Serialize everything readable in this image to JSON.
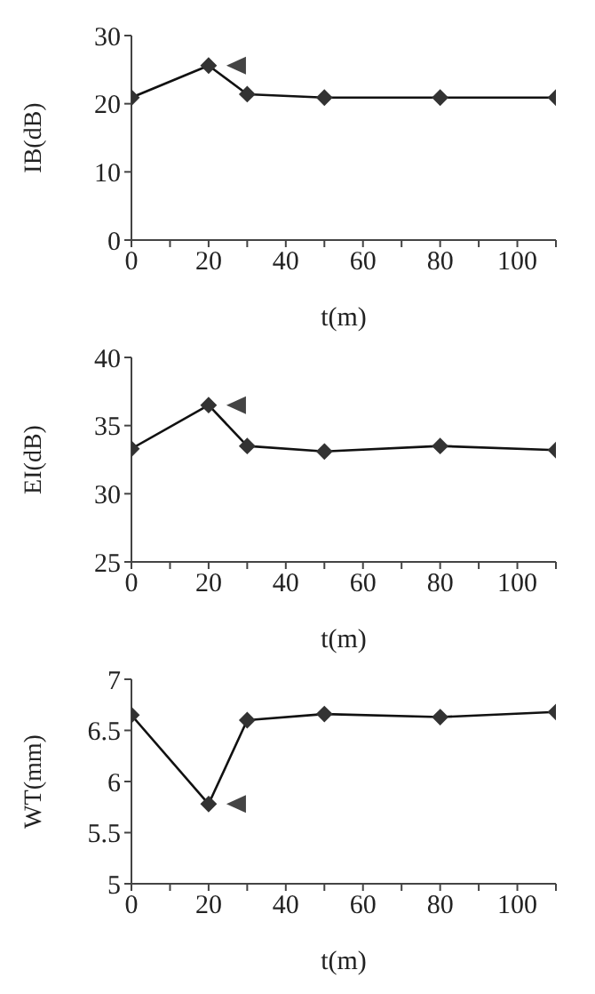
{
  "chart_data": [
    {
      "type": "line",
      "xlabel": "t(m)",
      "ylabel": "IB(dB)",
      "x": [
        0,
        20,
        30,
        50,
        80,
        110
      ],
      "series": [
        {
          "color": "#333333",
          "values": [
            20.9,
            25.6,
            21.4,
            20.9,
            20.9,
            20.9
          ]
        }
      ],
      "xlim": [
        0,
        110
      ],
      "xticks": [
        0,
        {
          "value": 10,
          "label": null
        },
        20,
        {
          "value": 30,
          "label": null
        },
        40,
        {
          "value": 50,
          "label": null
        },
        60,
        {
          "value": 70,
          "label": null
        },
        80,
        {
          "value": 90,
          "label": null
        },
        100,
        {
          "value": 110,
          "label": null
        }
      ],
      "ylim": [
        0,
        30
      ],
      "yticks": [
        0,
        10,
        20,
        30
      ],
      "grid": false,
      "legend": false,
      "marker": "diamond",
      "line_style": "solid"
    },
    {
      "type": "line",
      "xlabel": "t(m)",
      "ylabel": "EI(dB)",
      "x": [
        0,
        20,
        30,
        50,
        80,
        110
      ],
      "series": [
        {
          "color": "#333333",
          "values": [
            33.3,
            36.5,
            33.5,
            33.1,
            33.5,
            33.2
          ]
        }
      ],
      "xlim": [
        0,
        110
      ],
      "xticks": [
        0,
        {
          "value": 10,
          "label": null
        },
        20,
        {
          "value": 30,
          "label": null
        },
        40,
        {
          "value": 50,
          "label": null
        },
        60,
        {
          "value": 70,
          "label": null
        },
        80,
        {
          "value": 90,
          "label": null
        },
        100,
        {
          "value": 110,
          "label": null
        }
      ],
      "ylim": [
        25,
        40
      ],
      "yticks": [
        25,
        30,
        35,
        40
      ],
      "grid": false,
      "legend": false,
      "marker": "diamond",
      "line_style": "solid"
    },
    {
      "type": "line",
      "xlabel": "t(m)",
      "ylabel": "WT(mm)",
      "x": [
        0,
        20,
        30,
        50,
        80,
        110
      ],
      "series": [
        {
          "color": "#333333",
          "values": [
            6.65,
            5.78,
            6.6,
            6.66,
            6.63,
            6.68
          ]
        }
      ],
      "xlim": [
        0,
        110
      ],
      "xticks": [
        0,
        {
          "value": 10,
          "label": null
        },
        20,
        {
          "value": 30,
          "label": null
        },
        40,
        {
          "value": 50,
          "label": null
        },
        60,
        {
          "value": 70,
          "label": null
        },
        80,
        {
          "value": 90,
          "label": null
        },
        100,
        {
          "value": 110,
          "label": null
        }
      ],
      "ylim": [
        5,
        7
      ],
      "yticks": [
        5,
        {
          "value": 5.5,
          "label": "5.5"
        },
        6,
        {
          "value": 6.5,
          "label": "6.5"
        },
        7
      ],
      "grid": false,
      "legend": false,
      "marker": "diamond",
      "line_style": "solid"
    }
  ]
}
